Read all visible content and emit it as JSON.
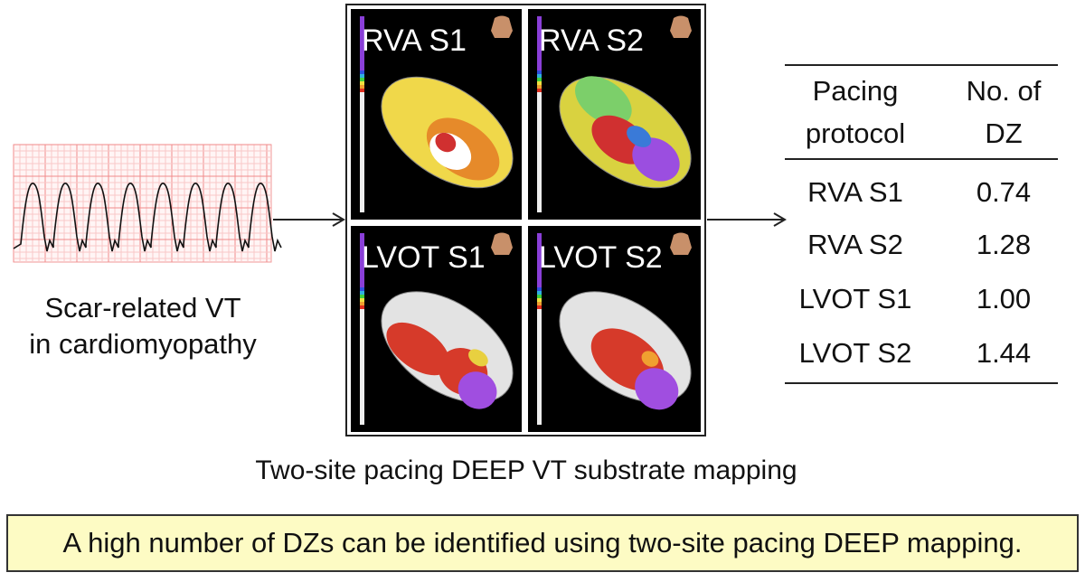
{
  "left": {
    "caption_lines": [
      "Scar-related VT",
      "in cardiomyopathy"
    ]
  },
  "maps": {
    "panels": [
      {
        "label": "RVA S1"
      },
      {
        "label": "RVA S2"
      },
      {
        "label": "LVOT S1"
      },
      {
        "label": "LVOT S2"
      }
    ],
    "caption": "Two-site pacing DEEP VT substrate mapping"
  },
  "table": {
    "header": [
      [
        "Pacing",
        "protocol"
      ],
      [
        "No. of",
        "DZ"
      ]
    ],
    "rows": [
      [
        "RVA S1",
        "0.74"
      ],
      [
        "RVA S2",
        "1.28"
      ],
      [
        "LVOT S1",
        "1.00"
      ],
      [
        "LVOT S2",
        "1.44"
      ]
    ]
  },
  "conclusion": "A high number of DZs can be identified using two-site pacing DEEP mapping."
}
